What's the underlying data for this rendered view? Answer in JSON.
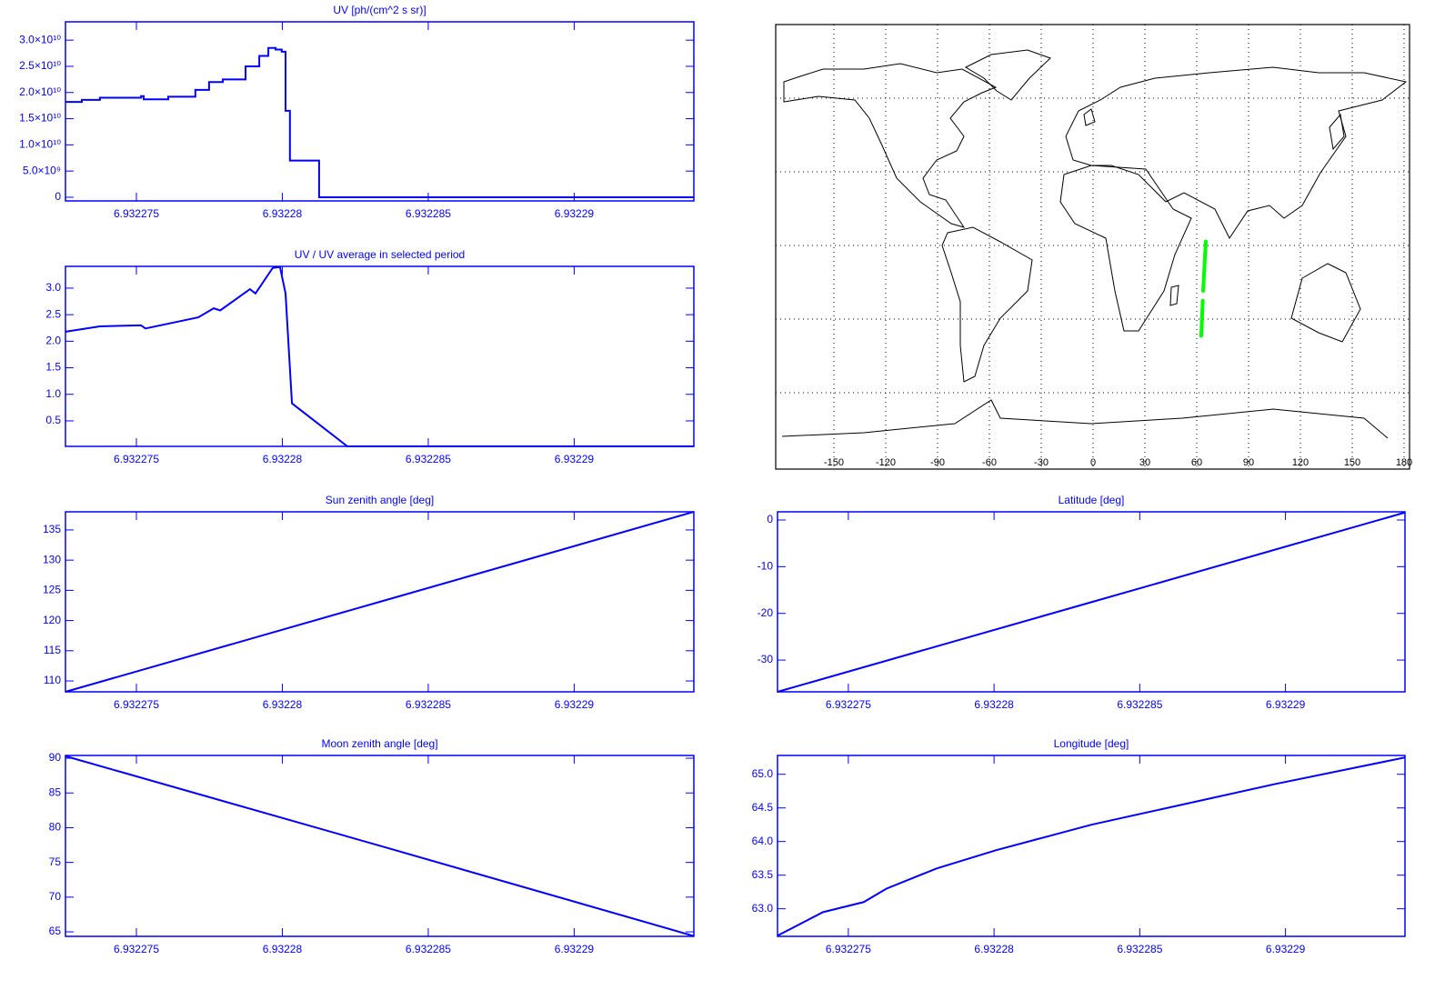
{
  "chart_data": [
    {
      "type": "step",
      "title": "UV [ph/(cm^2 s sr)]",
      "color": "#0000ff",
      "x": [
        6.93227257,
        6.93227313,
        6.93227375,
        6.93227516,
        6.93227525,
        6.93227609,
        6.93227702,
        6.93227749,
        6.93227796,
        6.93227874,
        6.93227921,
        6.93227952,
        6.93227977,
        6.93227998,
        6.93228011,
        6.93228026,
        6.93228126,
        6.9322941
      ],
      "values": [
        18200000000,
        18600000000,
        19000000000,
        19300000000,
        18700000000,
        19200000000,
        20500000000,
        22000000000,
        22500000000,
        25000000000,
        27000000000,
        28500000000,
        28200000000,
        27800000000,
        16500000000,
        7000000000,
        0,
        0
      ],
      "xlim": [
        6.93227257,
        6.9322941
      ],
      "ylim": [
        -700000000,
        33500000000
      ],
      "xticks": [
        6.932275,
        6.93228,
        6.932285,
        6.93229
      ],
      "yticks": [
        0,
        {
          "value": 5000000000,
          "label": "5.0×10⁹"
        },
        {
          "value": 10000000000,
          "label": "1.0×10¹⁰"
        },
        {
          "value": 15000000000,
          "label": "1.5×10¹⁰"
        },
        {
          "value": 20000000000,
          "label": "2.0×10¹⁰"
        },
        {
          "value": 25000000000,
          "label": "2.5×10¹⁰"
        },
        {
          "value": 30000000000,
          "label": "3.0×10¹⁰"
        }
      ]
    },
    {
      "type": "line",
      "title": "UV / UV average in selected period",
      "color": "#0000ff",
      "x": [
        6.93227257,
        6.93227375,
        6.93227516,
        6.93227531,
        6.93227609,
        6.93227712,
        6.93227765,
        6.93227787,
        6.93227889,
        6.93227908,
        6.93227967,
        6.93227992,
        6.93228011,
        6.93228033,
        6.93228223,
        6.9322941
      ],
      "values": [
        2.18,
        2.28,
        2.3,
        2.24,
        2.33,
        2.45,
        2.62,
        2.58,
        2.98,
        2.9,
        3.38,
        3.4,
        2.9,
        0.83,
        0.02,
        0.02
      ],
      "xlim": [
        6.93227257,
        6.9322941
      ],
      "ylim": [
        0.02,
        3.41
      ],
      "xticks": [
        6.932275,
        6.93228,
        6.932285,
        6.93229
      ],
      "yticks": [
        0.5,
        {
          "value": 1,
          "label": "1.0"
        },
        1.5,
        {
          "value": 2,
          "label": "2.0"
        },
        2.5,
        {
          "value": 3,
          "label": "3.0"
        }
      ]
    },
    {
      "type": "map",
      "color": "#00ff00",
      "x": [
        62.6,
        63.5,
        null,
        63.7,
        65.25
      ],
      "values": [
        -36.8,
        -22.5,
        null,
        -18.5,
        1.6
      ],
      "xlim": [
        -180,
        180
      ],
      "ylim": [
        -90,
        90
      ],
      "xticks": [
        -150,
        -120,
        -90,
        -60,
        -30,
        0,
        30,
        60,
        90,
        120,
        150,
        180
      ],
      "ygrid": [
        -60,
        -30,
        0,
        30,
        60
      ]
    },
    {
      "type": "line",
      "title": "Sun zenith angle [deg]",
      "color": "#0000ff",
      "x": [
        6.93227257,
        6.93228334,
        6.9322941
      ],
      "values": [
        108.2,
        123.1,
        138.0
      ],
      "xlim": [
        6.93227257,
        6.9322941
      ],
      "ylim": [
        108.2,
        138.0
      ],
      "xticks": [
        6.932275,
        6.93228,
        6.932285,
        6.93229
      ],
      "yticks": [
        110,
        115,
        120,
        125,
        130,
        135
      ]
    },
    {
      "type": "line",
      "title": "Latitude [deg]",
      "color": "#0000ff",
      "x": [
        6.93227257,
        6.93228334,
        6.9322941
      ],
      "values": [
        -36.8,
        -17.6,
        1.6
      ],
      "xlim": [
        6.93227257,
        6.9322941
      ],
      "ylim": [
        -36.8,
        1.75
      ],
      "xticks": [
        6.932275,
        6.93228,
        6.932285,
        6.93229
      ],
      "yticks": [
        -30,
        -20,
        -10,
        0
      ]
    },
    {
      "type": "line",
      "title": "Moon zenith angle [deg]",
      "color": "#0000ff",
      "x": [
        6.93227257,
        6.93228334,
        6.9322941
      ],
      "values": [
        90.3,
        77.4,
        64.4
      ],
      "xlim": [
        6.93227257,
        6.9322941
      ],
      "ylim": [
        64.35,
        90.4
      ],
      "xticks": [
        6.932275,
        6.93228,
        6.932285,
        6.93229
      ],
      "yticks": [
        65,
        70,
        75,
        80,
        85,
        90
      ]
    },
    {
      "type": "line",
      "title": "Longitude [deg]",
      "color": "#0000ff",
      "x": [
        6.93227257,
        6.93227413,
        6.93227553,
        6.93227631,
        6.93227803,
        6.93228006,
        6.93228334,
        6.93228647,
        6.93228959,
        6.9322941
      ],
      "values": [
        62.6,
        62.95,
        63.1,
        63.3,
        63.6,
        63.87,
        64.25,
        64.55,
        64.85,
        65.25
      ],
      "xlim": [
        6.93227257,
        6.9322941
      ],
      "ylim": [
        62.59,
        65.28
      ],
      "xticks": [
        6.932275,
        6.93228,
        6.932285,
        6.93229
      ],
      "yticks": [
        {
          "value": 63,
          "label": "63.0"
        },
        63.5,
        {
          "value": 64,
          "label": "64.0"
        },
        64.5,
        {
          "value": 65,
          "label": "65.0"
        }
      ]
    }
  ]
}
